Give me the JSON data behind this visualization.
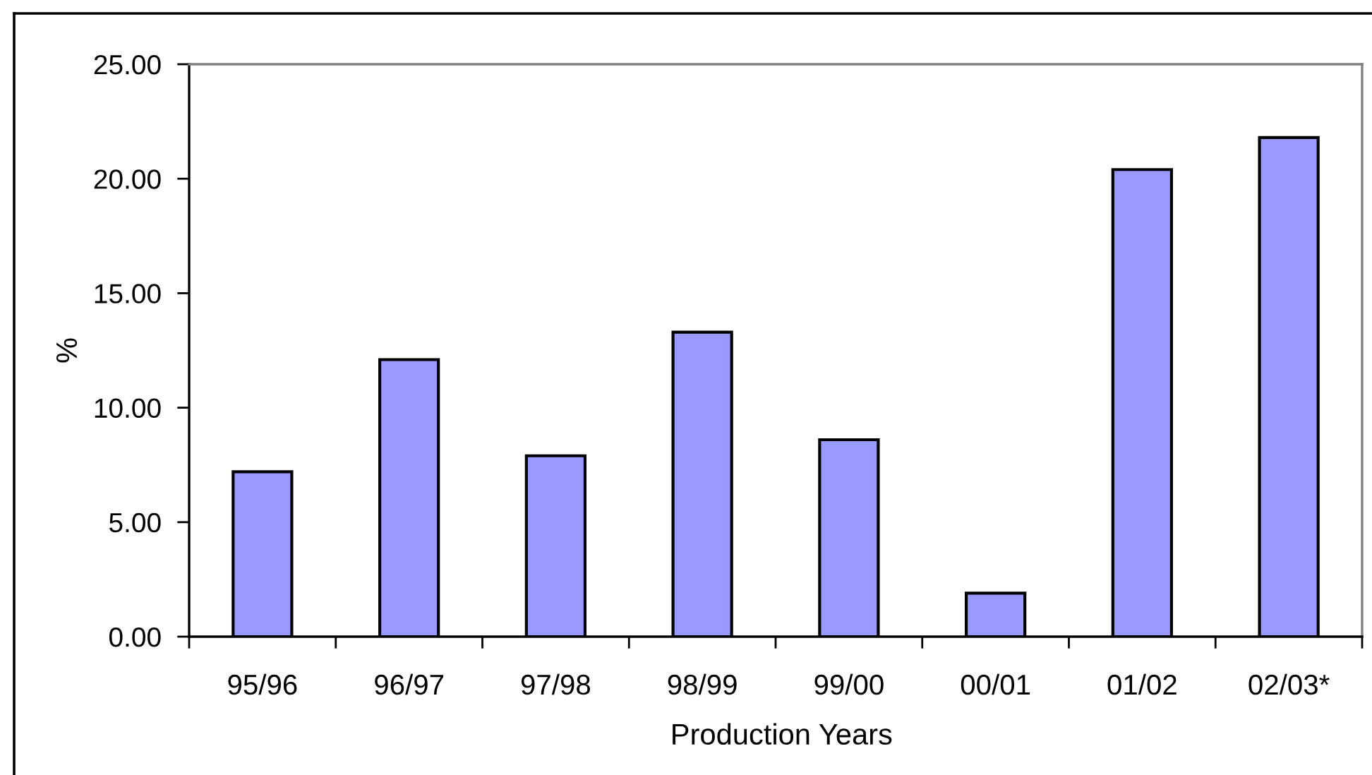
{
  "chart_data": {
    "type": "bar",
    "xlabel": "Production Years",
    "ylabel": "%",
    "categories": [
      "95/96",
      "96/97",
      "97/98",
      "98/99",
      "99/00",
      "00/01",
      "01/02",
      "02/03*"
    ],
    "values": [
      7.2,
      12.1,
      7.9,
      13.3,
      8.6,
      1.9,
      20.4,
      21.8
    ],
    "color": "#9999ff",
    "ylim": [
      0,
      25
    ],
    "yticks": [
      {
        "value": 0,
        "label": "0.00"
      },
      {
        "value": 5,
        "label": "5.00"
      },
      {
        "value": 10,
        "label": "10.00"
      },
      {
        "value": 15,
        "label": "15.00"
      },
      {
        "value": 20,
        "label": "20.00"
      },
      {
        "value": 25,
        "label": "25.00"
      }
    ]
  }
}
